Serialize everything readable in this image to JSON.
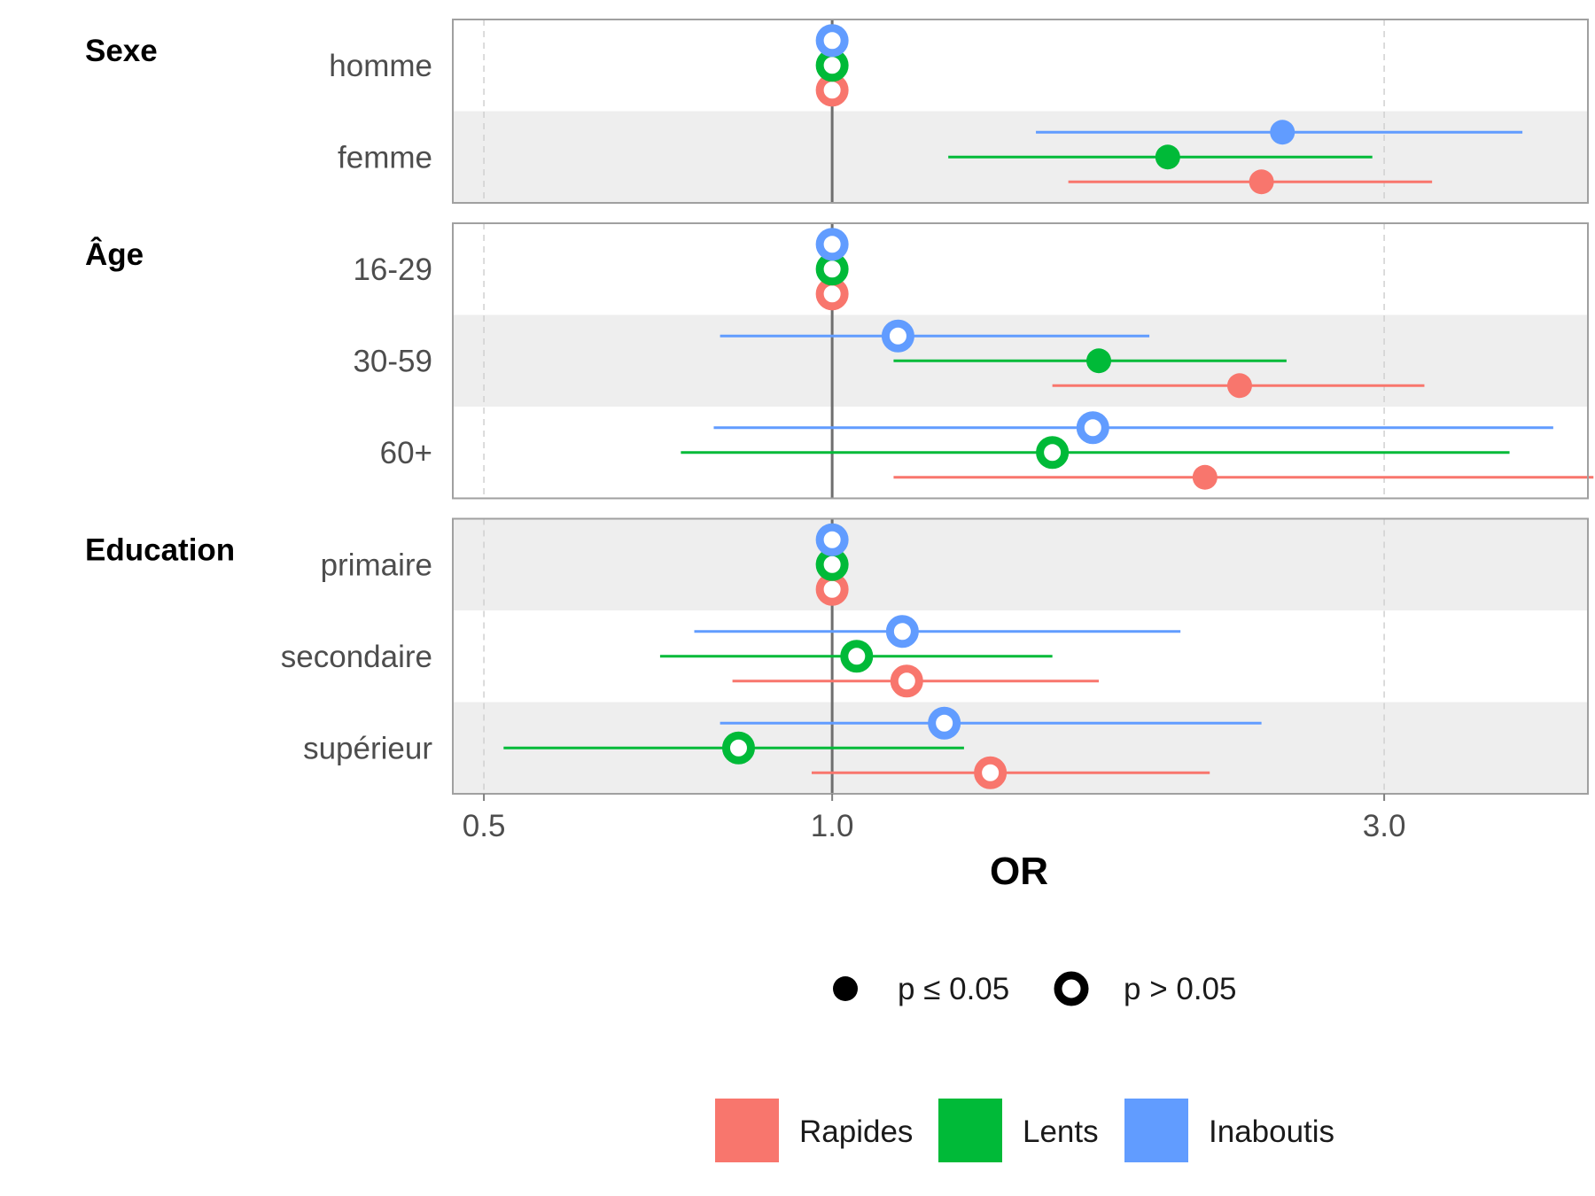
{
  "chart_data": {
    "type": "forest",
    "xlabel": "OR",
    "xscale": "log",
    "xlim": [
      0.47,
      4.5
    ],
    "xticks": [
      {
        "value": 0.5,
        "label": "0.5"
      },
      {
        "value": 1.0,
        "label": "1.0"
      },
      {
        "value": 3.0,
        "label": "3.0"
      }
    ],
    "reference_line": 1.0,
    "series": [
      {
        "name": "Rapides",
        "color": "#F8766D"
      },
      {
        "name": "Lents",
        "color": "#00BA38"
      },
      {
        "name": "Inaboutis",
        "color": "#619CFF"
      }
    ],
    "shape_legend": {
      "significant": "p ≤ 0.05",
      "not_significant": "p > 0.05"
    },
    "groups": [
      {
        "title": "Sexe",
        "rows": [
          {
            "label": "homme",
            "estimates": [
              {
                "series": "Rapides",
                "or": 1.0,
                "low": null,
                "high": null,
                "significant": false
              },
              {
                "series": "Lents",
                "or": 1.0,
                "low": null,
                "high": null,
                "significant": false
              },
              {
                "series": "Inaboutis",
                "or": 1.0,
                "low": null,
                "high": null,
                "significant": false
              }
            ]
          },
          {
            "label": "femme",
            "estimates": [
              {
                "series": "Rapides",
                "or": 2.35,
                "low": 1.6,
                "high": 3.3,
                "significant": true
              },
              {
                "series": "Lents",
                "or": 1.95,
                "low": 1.26,
                "high": 2.93,
                "significant": true
              },
              {
                "series": "Inaboutis",
                "or": 2.45,
                "low": 1.5,
                "high": 3.95,
                "significant": true
              }
            ]
          }
        ]
      },
      {
        "title": "Âge",
        "rows": [
          {
            "label": "16-29",
            "estimates": [
              {
                "series": "Rapides",
                "or": 1.0,
                "low": null,
                "high": null,
                "significant": false
              },
              {
                "series": "Lents",
                "or": 1.0,
                "low": null,
                "high": null,
                "significant": false
              },
              {
                "series": "Inaboutis",
                "or": 1.0,
                "low": null,
                "high": null,
                "significant": false
              }
            ]
          },
          {
            "label": "30-59",
            "estimates": [
              {
                "series": "Rapides",
                "or": 2.25,
                "low": 1.55,
                "high": 3.25,
                "significant": true
              },
              {
                "series": "Lents",
                "or": 1.7,
                "low": 1.13,
                "high": 2.47,
                "significant": true
              },
              {
                "series": "Inaboutis",
                "or": 1.14,
                "low": 0.8,
                "high": 1.88,
                "significant": false
              }
            ]
          },
          {
            "label": "60+",
            "estimates": [
              {
                "series": "Rapides",
                "or": 2.1,
                "low": 1.13,
                "high": 4.55,
                "significant": true
              },
              {
                "series": "Lents",
                "or": 1.55,
                "low": 0.74,
                "high": 3.85,
                "significant": false
              },
              {
                "series": "Inaboutis",
                "or": 1.68,
                "low": 0.79,
                "high": 4.2,
                "significant": false
              }
            ]
          }
        ]
      },
      {
        "title": "Education",
        "rows": [
          {
            "label": "primaire",
            "estimates": [
              {
                "series": "Rapides",
                "or": 1.0,
                "low": null,
                "high": null,
                "significant": false
              },
              {
                "series": "Lents",
                "or": 1.0,
                "low": null,
                "high": null,
                "significant": false
              },
              {
                "series": "Inaboutis",
                "or": 1.0,
                "low": null,
                "high": null,
                "significant": false
              }
            ]
          },
          {
            "label": "secondaire",
            "estimates": [
              {
                "series": "Rapides",
                "or": 1.16,
                "low": 0.82,
                "high": 1.7,
                "significant": false
              },
              {
                "series": "Lents",
                "or": 1.05,
                "low": 0.71,
                "high": 1.55,
                "significant": false
              },
              {
                "series": "Inaboutis",
                "or": 1.15,
                "low": 0.76,
                "high": 2.0,
                "significant": false
              }
            ]
          },
          {
            "label": "supérieur",
            "estimates": [
              {
                "series": "Rapides",
                "or": 1.37,
                "low": 0.96,
                "high": 2.12,
                "significant": false
              },
              {
                "series": "Lents",
                "or": 0.83,
                "low": 0.52,
                "high": 1.3,
                "significant": false
              },
              {
                "series": "Inaboutis",
                "or": 1.25,
                "low": 0.8,
                "high": 2.35,
                "significant": false
              }
            ]
          }
        ]
      }
    ]
  }
}
